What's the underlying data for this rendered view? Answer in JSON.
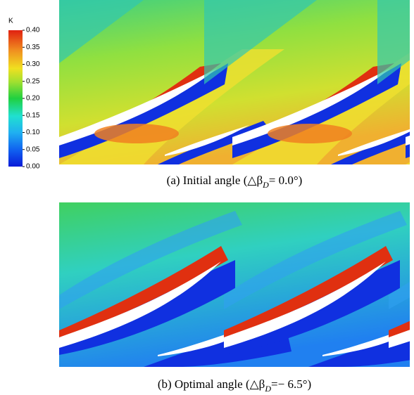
{
  "colorbar": {
    "title": "K",
    "range": [
      0,
      0.4
    ],
    "ticks": [
      {
        "value": 0,
        "label": "0.00"
      },
      {
        "value": 0.05,
        "label": "0.05"
      },
      {
        "value": 0.1,
        "label": "0.10"
      },
      {
        "value": 0.15,
        "label": "0.15"
      },
      {
        "value": 0.2,
        "label": "0.20"
      },
      {
        "value": 0.25,
        "label": "0.25"
      },
      {
        "value": 0.3,
        "label": "0.30"
      },
      {
        "value": 0.35,
        "label": "0.35"
      },
      {
        "value": 0.4,
        "label": "0.40"
      }
    ]
  },
  "panels": [
    {
      "caption": {
        "prefix": "(a)  Initial angle  (△β",
        "sub": "D",
        "suffix": "= 0.0°)"
      }
    },
    {
      "caption": {
        "prefix": "(b)  Optimal angle  (△β",
        "sub": "D",
        "suffix": "=− 6.5°)"
      }
    }
  ]
}
